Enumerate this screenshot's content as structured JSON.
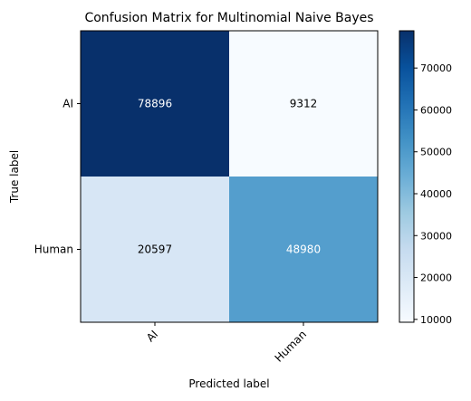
{
  "chart_data": {
    "type": "heatmap",
    "title": "Confusion Matrix for Multinomial Naive Bayes",
    "xlabel": "Predicted label",
    "ylabel": "True label",
    "row_labels": [
      "AI",
      "Human"
    ],
    "col_labels": [
      "AI",
      "Human"
    ],
    "values": [
      [
        78896,
        9312
      ],
      [
        20597,
        48980
      ]
    ],
    "cell_text": [
      [
        "78896",
        "9312"
      ],
      [
        "20597",
        "48980"
      ]
    ],
    "colormap": "Blues",
    "color_range": [
      9312,
      78896
    ],
    "colorbar_ticks": [
      10000,
      20000,
      30000,
      40000,
      50000,
      60000,
      70000
    ],
    "colorbar_tick_labels": [
      "10000",
      "20000",
      "30000",
      "40000",
      "50000",
      "60000",
      "70000"
    ],
    "x_tick_rotation_deg": 45,
    "grid": false
  }
}
